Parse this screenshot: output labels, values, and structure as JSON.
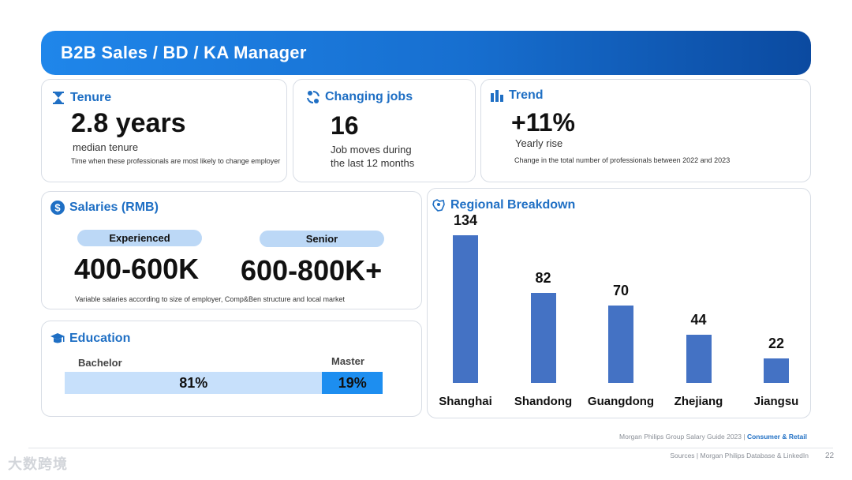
{
  "header": {
    "title": "B2B Sales / BD / KA Manager"
  },
  "tenure": {
    "label": "Tenure",
    "value": "2.8 years",
    "subtitle": "median tenure",
    "note": "Time when these professionals are most likely to  change employer"
  },
  "changing_jobs": {
    "label": "Changing jobs",
    "value": "16",
    "subtitle_line1": "Job moves during",
    "subtitle_line2": "the last 12 months"
  },
  "trend": {
    "label": "Trend",
    "value": "+11%",
    "subtitle": "Yearly rise",
    "note": "Change in the total number of professionals between 2022 and 2023"
  },
  "salaries": {
    "label": "Salaries (RMB)",
    "experienced_label": "Experienced",
    "experienced_value": "400-600K",
    "senior_label": "Senior",
    "senior_value": "600-800K+",
    "note": "Variable salaries according to size of employer, Comp&Ben structure and local market"
  },
  "education": {
    "label": "Education",
    "bachelor_label": "Bachelor",
    "bachelor_value": "81%",
    "master_label": "Master",
    "master_value": "19%",
    "bachelor_share": 81,
    "master_share": 19
  },
  "regional": {
    "label": "Regional Breakdown"
  },
  "chart_data": {
    "type": "bar",
    "title": "Regional Breakdown",
    "categories": [
      "Shanghai",
      "Shandong",
      "Guangdong",
      "Zhejiang",
      "Jiangsu"
    ],
    "values": [
      134,
      82,
      70,
      44,
      22
    ],
    "xlabel": "",
    "ylabel": "",
    "ylim": [
      0,
      134
    ],
    "color": "#4472c4"
  },
  "footer": {
    "guide": "Morgan Philips Group Salary Guide 2023 |",
    "sector": "Consumer & Retail",
    "sources": "Sources | Morgan Philips Database & LinkedIn",
    "page": "22",
    "watermark": "大数跨境"
  },
  "colors": {
    "accent": "#1f6fc4",
    "banner": "#176fd0",
    "bar": "#4472c4"
  }
}
